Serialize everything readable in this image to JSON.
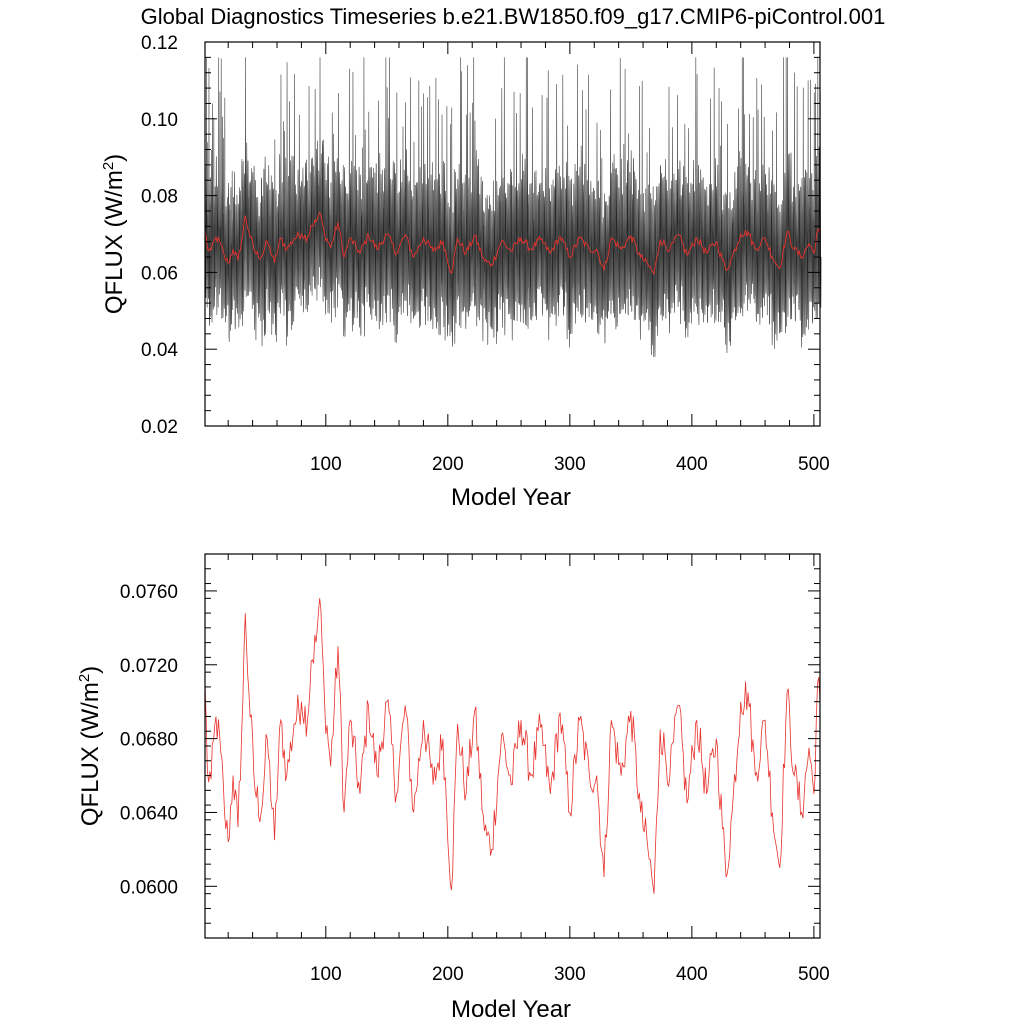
{
  "title": "Global Diagnostics Timeseries b.e21.BW1850.f09_g17.CMIP6-piControl.001",
  "colors": {
    "annual_mean": "#e8322c",
    "monthly": "#000000",
    "monthly_light": "#8a8a8a",
    "axes": "#000000"
  },
  "chart_data": [
    {
      "type": "line",
      "xlabel": "Model Year",
      "ylabel_main": "QFLUX (W/m",
      "ylabel_sup": "2",
      "ylabel_close": ")",
      "xlim": [
        1,
        505
      ],
      "ylim": [
        0.02,
        0.12
      ],
      "x_ticks": [
        100,
        200,
        300,
        400,
        500
      ],
      "x_tick_labels": [
        "100",
        "200",
        "300",
        "400",
        "500"
      ],
      "y_ticks": [
        0.02,
        0.04,
        0.06,
        0.08,
        0.1,
        0.12
      ],
      "y_tick_labels": [
        "0.02",
        "0.04",
        "0.06",
        "0.08",
        "0.10",
        "0.12"
      ],
      "series": [
        {
          "kind": "monthly",
          "color": "#000000",
          "mean": 0.0655,
          "min_approx": 0.04,
          "max_approx": 0.115,
          "note_values": "monthly values oscillate seasonally between about 0.045 and 0.10"
        },
        {
          "kind": "annual_mean",
          "color": "#e8322c"
        }
      ]
    },
    {
      "type": "line",
      "xlabel": "Model Year",
      "ylabel_main": "QFLUX (W/m",
      "ylabel_sup": "2",
      "ylabel_close": ")",
      "xlim": [
        1,
        505
      ],
      "ylim": [
        0.0572,
        0.078
      ],
      "x_ticks": [
        100,
        200,
        300,
        400,
        500
      ],
      "x_tick_labels": [
        "100",
        "200",
        "300",
        "400",
        "500"
      ],
      "y_ticks": [
        0.06,
        0.064,
        0.068,
        0.072,
        0.076
      ],
      "y_tick_labels": [
        "0.0600",
        "0.0640",
        "0.0680",
        "0.0720",
        "0.0760"
      ],
      "series": [
        {
          "kind": "annual_mean",
          "color": "#e8322c",
          "x_start": 1,
          "keypoints": [
            [
              1,
              0.071
            ],
            [
              3,
              0.0662
            ],
            [
              6,
              0.0658
            ],
            [
              10,
              0.0692
            ],
            [
              14,
              0.0672
            ],
            [
              17,
              0.064
            ],
            [
              20,
              0.0624
            ],
            [
              24,
              0.066
            ],
            [
              28,
              0.0632
            ],
            [
              32,
              0.07
            ],
            [
              34,
              0.0748
            ],
            [
              37,
              0.0705
            ],
            [
              42,
              0.0652
            ],
            [
              47,
              0.064
            ],
            [
              52,
              0.068
            ],
            [
              58,
              0.0625
            ],
            [
              63,
              0.069
            ],
            [
              68,
              0.066
            ],
            [
              74,
              0.0688
            ],
            [
              80,
              0.07
            ],
            [
              85,
              0.069
            ],
            [
              88,
              0.0722
            ],
            [
              92,
              0.0732
            ],
            [
              95,
              0.0756
            ],
            [
              99,
              0.07
            ],
            [
              104,
              0.0665
            ],
            [
              110,
              0.073
            ],
            [
              115,
              0.064
            ],
            [
              120,
              0.069
            ],
            [
              128,
              0.065
            ],
            [
              135,
              0.0698
            ],
            [
              142,
              0.066
            ],
            [
              150,
              0.07
            ],
            [
              158,
              0.065
            ],
            [
              165,
              0.0698
            ],
            [
              172,
              0.064
            ],
            [
              180,
              0.069
            ],
            [
              188,
              0.0655
            ],
            [
              196,
              0.068
            ],
            [
              203,
              0.0598
            ],
            [
              208,
              0.0688
            ],
            [
              215,
              0.065
            ],
            [
              222,
              0.0695
            ],
            [
              230,
              0.063
            ],
            [
              236,
              0.062
            ],
            [
              244,
              0.0682
            ],
            [
              252,
              0.0655
            ],
            [
              260,
              0.069
            ],
            [
              268,
              0.066
            ],
            [
              276,
              0.0686
            ],
            [
              284,
              0.065
            ],
            [
              292,
              0.0694
            ],
            [
              300,
              0.064
            ],
            [
              308,
              0.069
            ],
            [
              316,
              0.066
            ],
            [
              322,
              0.066
            ],
            [
              328,
              0.0605
            ],
            [
              334,
              0.069
            ],
            [
              342,
              0.066
            ],
            [
              350,
              0.0695
            ],
            [
              358,
              0.064
            ],
            [
              364,
              0.062
            ],
            [
              369,
              0.0596
            ],
            [
              374,
              0.0685
            ],
            [
              382,
              0.066
            ],
            [
              389,
              0.0698
            ],
            [
              396,
              0.0645
            ],
            [
              404,
              0.069
            ],
            [
              412,
              0.065
            ],
            [
              420,
              0.068
            ],
            [
              428,
              0.0605
            ],
            [
              433,
              0.064
            ],
            [
              440,
              0.07
            ],
            [
              446,
              0.0705
            ],
            [
              452,
              0.066
            ],
            [
              460,
              0.069
            ],
            [
              466,
              0.064
            ],
            [
              472,
              0.061
            ],
            [
              478,
              0.0705
            ],
            [
              484,
              0.066
            ],
            [
              490,
              0.064
            ],
            [
              496,
              0.0675
            ],
            [
              500,
              0.065
            ],
            [
              503,
              0.071
            ],
            [
              505,
              0.07
            ]
          ]
        }
      ]
    }
  ]
}
